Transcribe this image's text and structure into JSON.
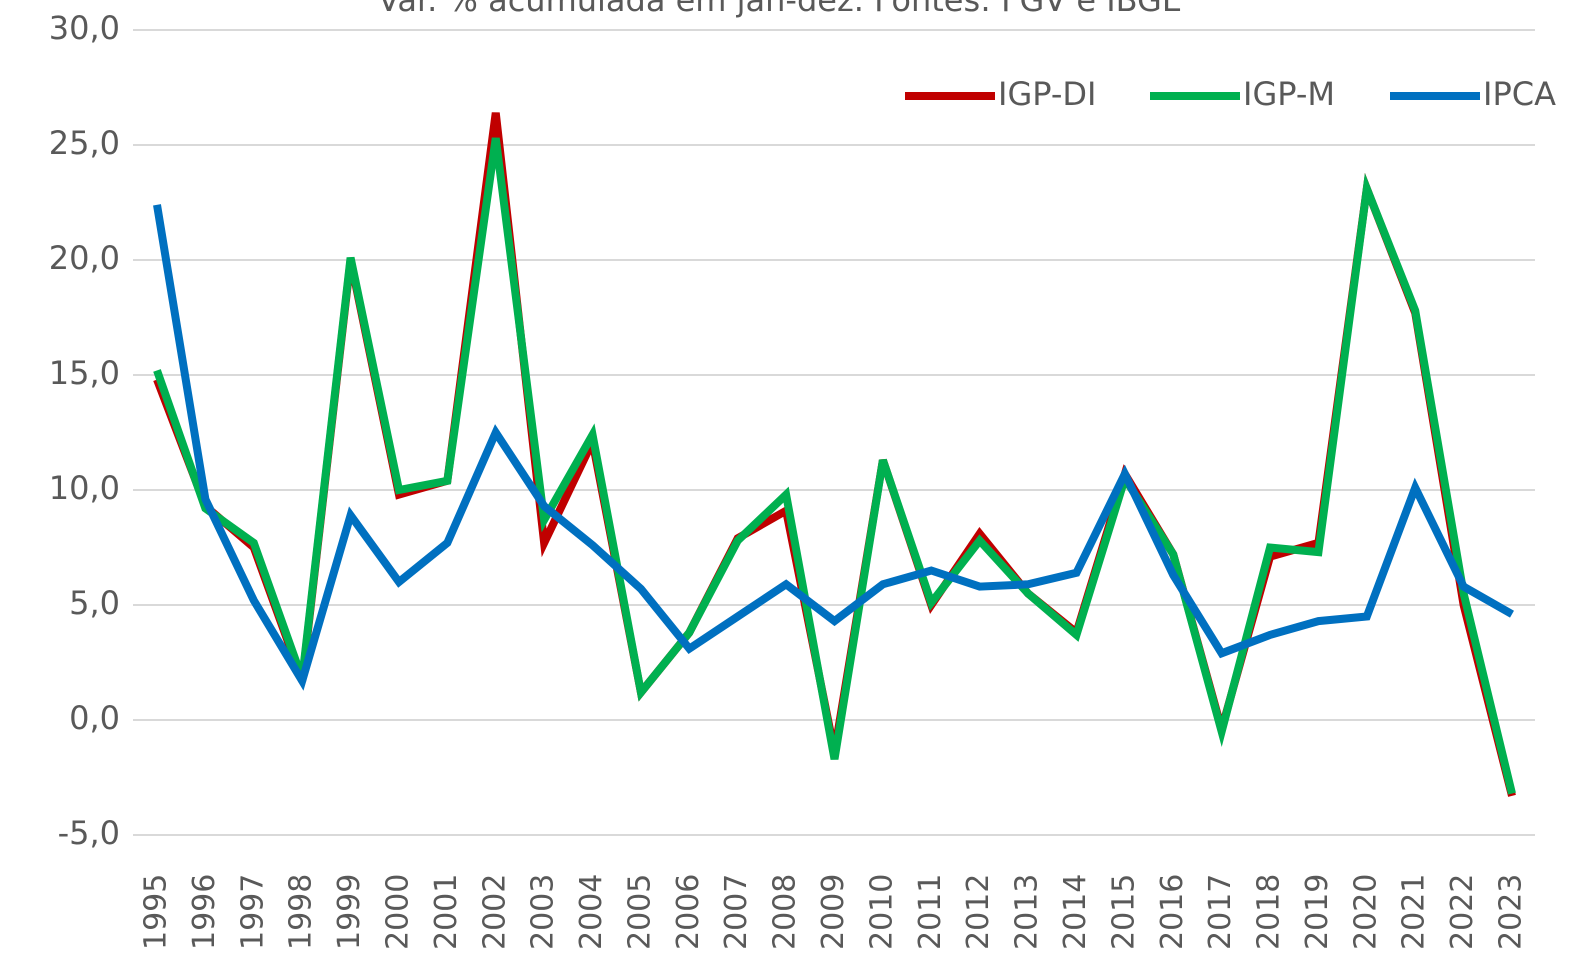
{
  "chart_data": {
    "type": "line",
    "title": "Var. % acumulada em jan-dez. Fontes: FGV e IBGE",
    "categories": [
      "1995",
      "1996",
      "1997",
      "1998",
      "1999",
      "2000",
      "2001",
      "2002",
      "2003",
      "2004",
      "2005",
      "2006",
      "2007",
      "2008",
      "2009",
      "2010",
      "2011",
      "2012",
      "2013",
      "2014",
      "2015",
      "2016",
      "2017",
      "2018",
      "2019",
      "2020",
      "2021",
      "2022",
      "2023"
    ],
    "series": [
      {
        "name": "IGP-DI",
        "color": "#c00000",
        "values": [
          14.8,
          9.3,
          7.5,
          1.7,
          20.0,
          9.8,
          10.4,
          26.4,
          7.7,
          12.1,
          1.2,
          3.8,
          7.9,
          9.1,
          -1.4,
          11.3,
          5.0,
          8.1,
          5.5,
          3.8,
          10.7,
          7.2,
          -0.4,
          7.1,
          7.7,
          23.1,
          17.7,
          5.0,
          -3.3
        ]
      },
      {
        "name": "IGP-M",
        "color": "#00b050",
        "values": [
          15.2,
          9.2,
          7.7,
          1.8,
          20.1,
          10.0,
          10.4,
          25.3,
          8.7,
          12.4,
          1.2,
          3.8,
          7.8,
          9.8,
          -1.7,
          11.3,
          5.1,
          7.8,
          5.5,
          3.7,
          10.5,
          7.2,
          -0.5,
          7.5,
          7.3,
          23.1,
          17.8,
          5.5,
          -3.2
        ]
      },
      {
        "name": "IPCA",
        "color": "#0070c0",
        "values": [
          22.4,
          9.6,
          5.2,
          1.7,
          8.9,
          6.0,
          7.7,
          12.5,
          9.3,
          7.6,
          5.7,
          3.1,
          4.5,
          5.9,
          4.3,
          5.9,
          6.5,
          5.8,
          5.9,
          6.4,
          10.7,
          6.3,
          2.9,
          3.7,
          4.3,
          4.5,
          10.1,
          5.8,
          4.6
        ]
      }
    ],
    "ylim": [
      -5,
      30
    ],
    "yticks": [
      {
        "value": -5,
        "label": "-5,0"
      },
      {
        "value": 0,
        "label": "0,0"
      },
      {
        "value": 5,
        "label": "5,0"
      },
      {
        "value": 10,
        "label": "10,0"
      },
      {
        "value": 15,
        "label": "15,0"
      },
      {
        "value": 20,
        "label": "20,0"
      },
      {
        "value": 25,
        "label": "25,0"
      },
      {
        "value": 30,
        "label": "30,0"
      }
    ],
    "grid": true,
    "legend": "top-right"
  }
}
